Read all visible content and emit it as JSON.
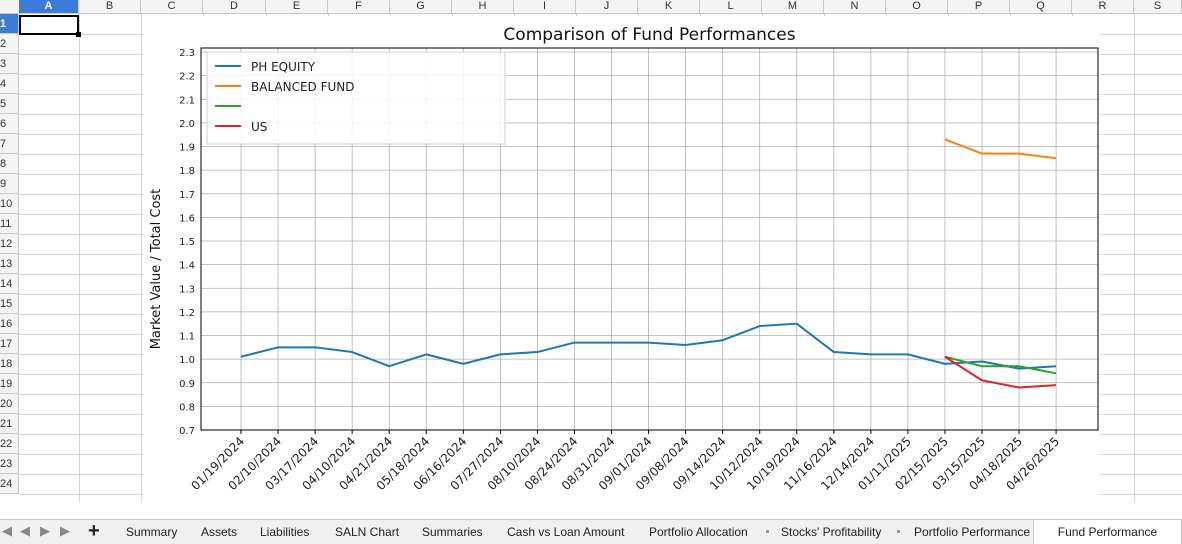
{
  "spreadsheet": {
    "columns": [
      "A",
      "B",
      "C",
      "D",
      "E",
      "F",
      "G",
      "H",
      "I",
      "J",
      "K",
      "L",
      "M",
      "N",
      "O",
      "P",
      "Q",
      "R",
      "S"
    ],
    "active_column": "A",
    "rows": [
      "1",
      "2",
      "3",
      "4",
      "5",
      "6",
      "7",
      "8",
      "9",
      "10",
      "11",
      "12",
      "13",
      "14",
      "15",
      "16",
      "17",
      "18",
      "19",
      "20",
      "21",
      "22",
      "23",
      "24"
    ],
    "active_row": "1"
  },
  "chart_data": {
    "type": "line",
    "title": "Comparison of Fund Performances",
    "ylabel": "Market Value / Total Cost",
    "xlabel": "",
    "grid": true,
    "legend_placement": "top-left",
    "x": [
      "01/19/2024",
      "02/10/2024",
      "03/17/2024",
      "04/10/2024",
      "04/21/2024",
      "05/18/2024",
      "06/16/2024",
      "07/27/2024",
      "08/10/2024",
      "08/24/2024",
      "08/31/2024",
      "09/01/2024",
      "09/08/2024",
      "09/14/2024",
      "10/12/2024",
      "10/19/2024",
      "11/16/2024",
      "12/14/2024",
      "01/11/2025",
      "02/15/2025",
      "03/15/2025",
      "04/18/2025",
      "04/26/2025"
    ],
    "y_tick_labels": [
      "0.7",
      "0.8",
      "0.9",
      "1.0",
      "1.1",
      "1.2",
      "1.3",
      "1.4",
      "1.5",
      "1.6",
      "1.7",
      "1.8",
      "1.9",
      "2.0",
      "2.1",
      "2.2",
      "2.3"
    ],
    "ylim": [
      0.7,
      2.3
    ],
    "series": [
      {
        "name": "PH EQUITY",
        "color": "#1f77b4",
        "values": [
          1.01,
          1.05,
          1.05,
          1.03,
          0.97,
          1.02,
          0.98,
          1.02,
          1.03,
          1.07,
          1.07,
          1.07,
          1.06,
          1.08,
          1.14,
          1.15,
          1.03,
          1.02,
          1.02,
          0.98,
          0.99,
          0.96,
          0.97
        ]
      },
      {
        "name": "BALANCED FUND",
        "color": "#ff7f0e",
        "values": [
          null,
          null,
          null,
          null,
          null,
          null,
          null,
          null,
          null,
          null,
          null,
          null,
          null,
          null,
          null,
          null,
          null,
          null,
          null,
          1.93,
          1.87,
          1.87,
          1.85
        ]
      },
      {
        "name": "",
        "color": "#2ca02c",
        "values": [
          null,
          null,
          null,
          null,
          null,
          null,
          null,
          null,
          null,
          null,
          null,
          null,
          null,
          null,
          null,
          null,
          null,
          null,
          null,
          1.01,
          0.97,
          0.97,
          0.94
        ]
      },
      {
        "name": "US",
        "color": "#d62728",
        "values": [
          null,
          null,
          null,
          null,
          null,
          null,
          null,
          null,
          null,
          null,
          null,
          null,
          null,
          null,
          null,
          null,
          null,
          null,
          null,
          1.01,
          0.91,
          0.88,
          0.89
        ]
      }
    ]
  },
  "tabs": {
    "items": [
      "Summary",
      "Assets",
      "Liabilities",
      "SALN Chart",
      "Summaries",
      "Cash vs Loan Amount",
      "Portfolio Allocation",
      "Stocks' Profitability",
      "Portfolio Performance",
      "Fund Performance"
    ],
    "active": "Fund Performance"
  },
  "colors": {
    "accent": "#3d7bd6",
    "grid": "#d6d6d6"
  }
}
